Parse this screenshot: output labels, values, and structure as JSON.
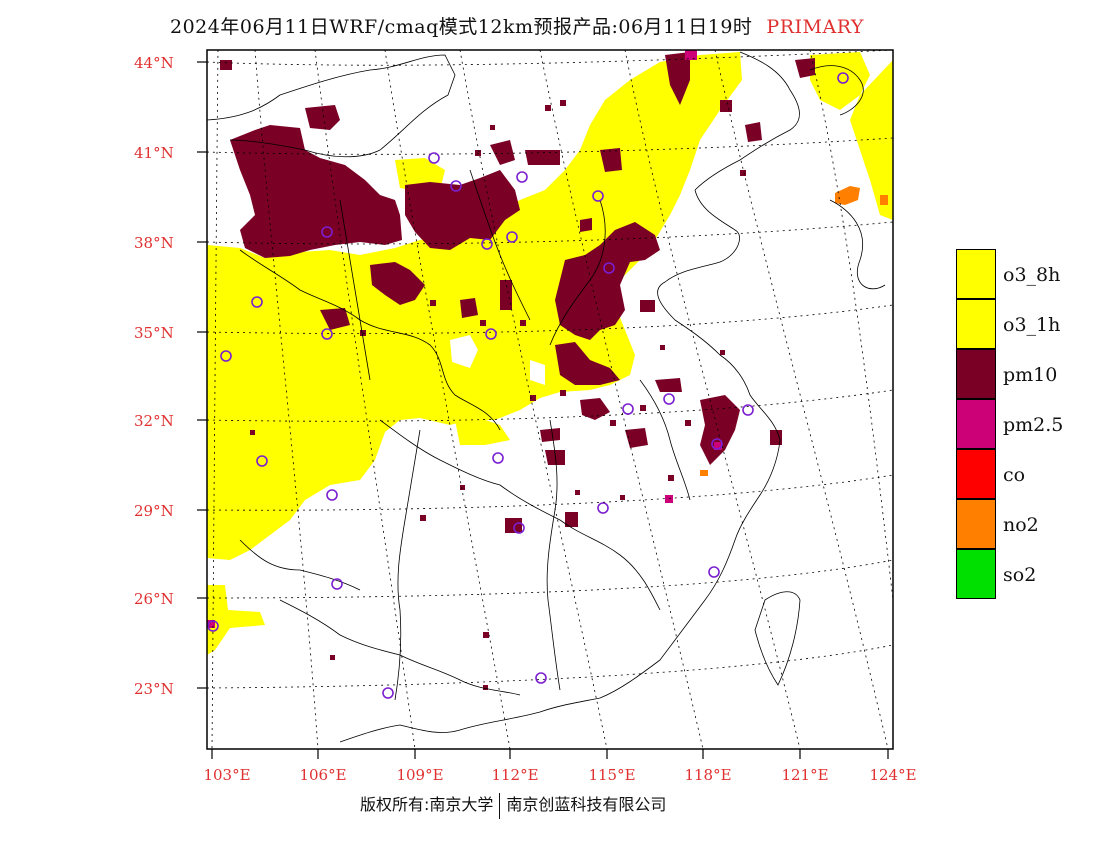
{
  "title": "2024年06月11日WRF/cmaq模式12km预报产品:06月11日19时",
  "status": "PRIMARY",
  "lat_labels": [
    "44°N",
    "41°N",
    "38°N",
    "35°N",
    "32°N",
    "29°N",
    "26°N",
    "23°N"
  ],
  "lon_labels": [
    "103°E",
    "106°E",
    "109°E",
    "112°E",
    "115°E",
    "118°E",
    "121°E",
    "124°E"
  ],
  "copyright": {
    "left": "版权所有:南京大学",
    "right": "南京创蓝科技有限公司"
  },
  "legend": [
    {
      "label": "o3_8h",
      "color": "#ffff00"
    },
    {
      "label": "o3_1h",
      "color": "#ffff00"
    },
    {
      "label": "pm10",
      "color": "#7a0026"
    },
    {
      "label": "pm2.5",
      "color": "#cc0077"
    },
    {
      "label": "co",
      "color": "#ff0000"
    },
    {
      "label": "no2",
      "color": "#ff7f00"
    },
    {
      "label": "so2",
      "color": "#00e000"
    }
  ],
  "colors": {
    "o3": "#ffff00",
    "pm10": "#7a0026",
    "pm25": "#cc0077",
    "no2": "#ff7f00",
    "station": "#7b1fd0",
    "label": "#e03030"
  }
}
